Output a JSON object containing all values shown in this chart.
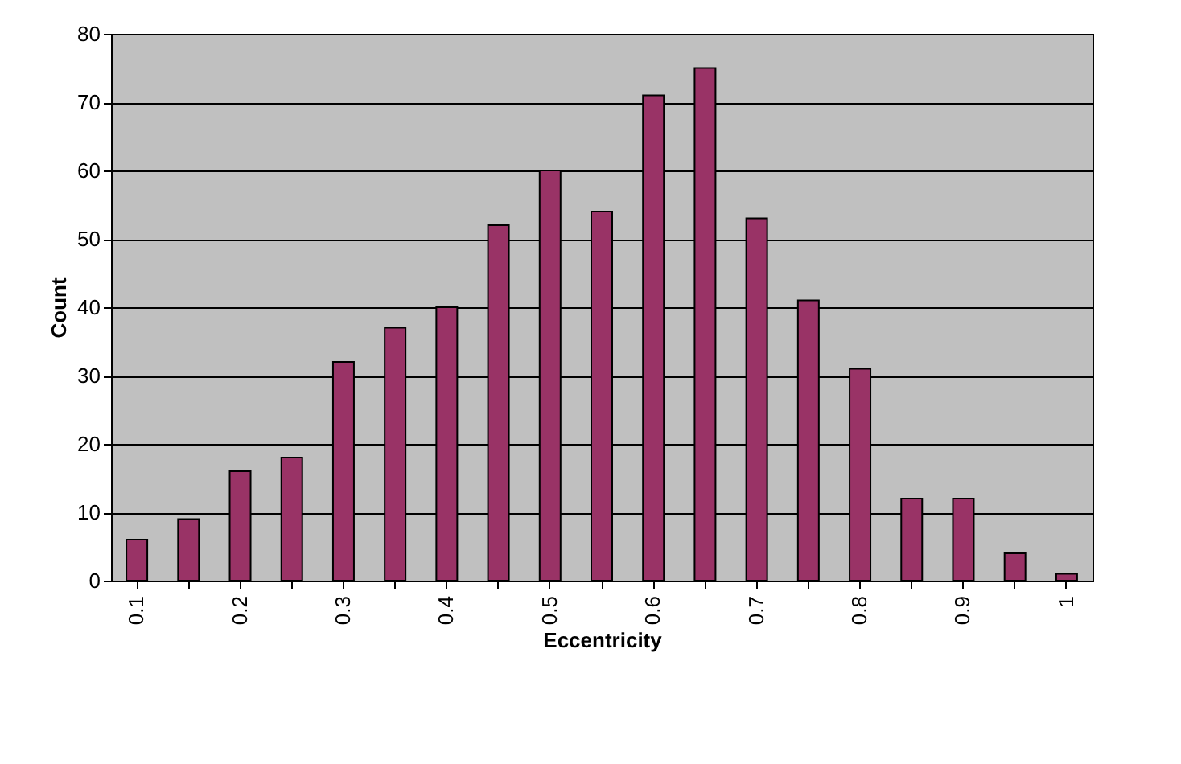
{
  "chart_data": {
    "type": "bar",
    "xlabel": "Eccentricity",
    "ylabel": "Count",
    "categories": [
      "0.1",
      null,
      "0.2",
      null,
      "0.3",
      null,
      "0.4",
      null,
      "0.5",
      null,
      "0.6",
      null,
      "0.7",
      null,
      "0.8",
      null,
      "0.9",
      null,
      "1"
    ],
    "values": [
      6,
      9,
      16,
      18,
      32,
      37,
      40,
      52,
      60,
      54,
      71,
      75,
      53,
      41,
      31,
      12,
      12,
      4,
      1
    ],
    "color": "#993366",
    "ylim": [
      0,
      80
    ],
    "yticks": [
      0,
      10,
      20,
      30,
      40,
      50,
      60,
      70,
      80
    ],
    "grid": "y"
  }
}
